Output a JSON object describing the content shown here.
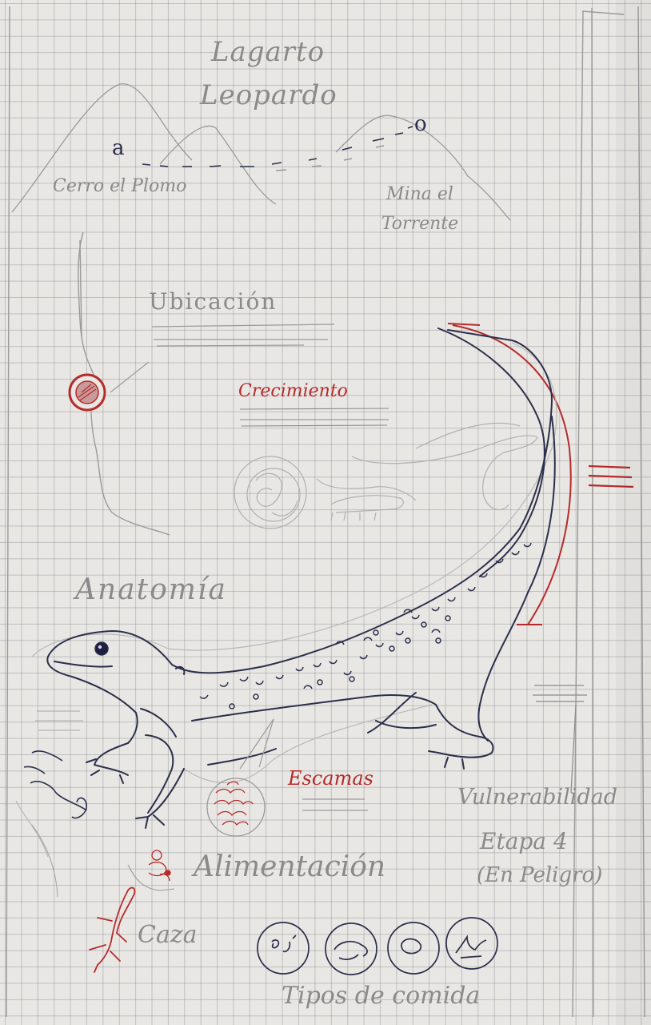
{
  "sheet": {
    "title": "Lagarto Leopardo",
    "map_labels": {
      "start": "Cerro el Plomo",
      "end": "Mina el Torrente"
    },
    "route_points": {
      "start": "a",
      "end": "o"
    },
    "sections": {
      "location": "Ubicación",
      "growth": "Crecimiento",
      "anatomy": "Anatomía",
      "scales": "Escamas",
      "feeding": "Alimentación",
      "hunting": "Caza",
      "food_types": "Tipos de comida",
      "vulnerability": "Vulnerabilidad",
      "stage": "Etapa 4",
      "status": "(En Peligro)"
    }
  },
  "colors": {
    "paper": "#e9e7e4",
    "grid": "#7d8187",
    "pencil": "#8a8a8a",
    "pen": "#2b2f4a",
    "red_pen": "#b52b2b"
  }
}
